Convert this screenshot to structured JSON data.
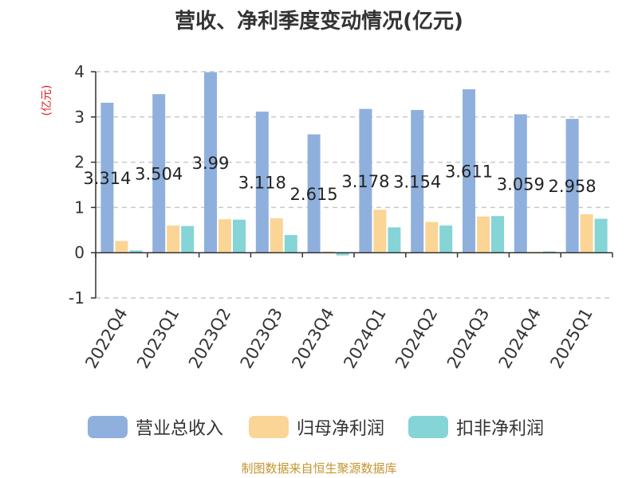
{
  "chart_data": {
    "type": "bar",
    "title": "营收、净利季度变动情况(亿元)",
    "ylabel": "(亿元)",
    "xlabel": "",
    "ylim": [
      -1,
      4
    ],
    "yticks": [
      -1,
      0,
      1,
      2,
      3,
      4
    ],
    "grid": true,
    "legend_position": "bottom",
    "categories": [
      "2022Q4",
      "2023Q1",
      "2023Q2",
      "2023Q3",
      "2023Q4",
      "2024Q1",
      "2024Q2",
      "2024Q3",
      "2024Q4",
      "2025Q1"
    ],
    "series": [
      {
        "name": "营业总收入",
        "color": "#8fb0dd",
        "values": [
          3.314,
          3.504,
          3.99,
          3.118,
          2.615,
          3.178,
          3.154,
          3.611,
          3.059,
          2.958
        ],
        "data_labels": [
          "3.314",
          "3.504",
          "3.99",
          "3.118",
          "2.615",
          "3.178",
          "3.154",
          "3.611",
          "3.059",
          "2.958"
        ]
      },
      {
        "name": "归母净利润",
        "color": "#fbd595",
        "values": [
          0.26,
          0.6,
          0.74,
          0.76,
          0.03,
          0.95,
          0.68,
          0.8,
          0.02,
          0.85
        ]
      },
      {
        "name": "扣非净利润",
        "color": "#85d4d6",
        "values": [
          0.05,
          0.59,
          0.73,
          0.39,
          -0.06,
          0.56,
          0.6,
          0.81,
          0.03,
          0.75
        ]
      }
    ]
  },
  "footer": {
    "source": "制图数据来自恒生聚源数据库"
  }
}
